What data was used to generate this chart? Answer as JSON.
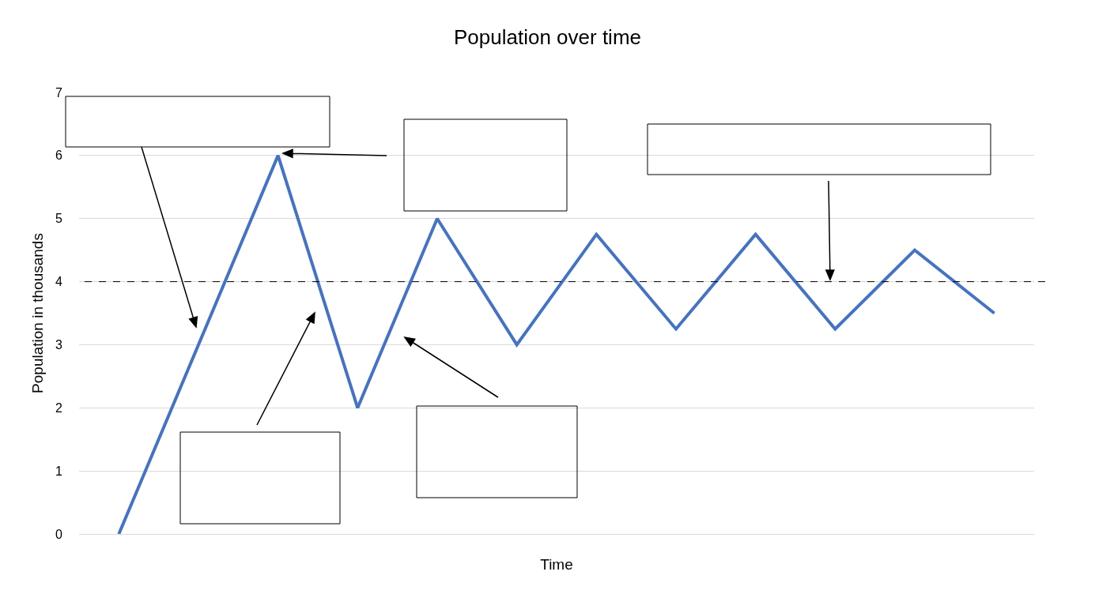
{
  "chart_data": {
    "type": "line",
    "title": "Population over time",
    "xlabel": "Time",
    "ylabel": "Population in thousands",
    "categories": [
      null,
      null,
      null,
      null,
      null,
      null,
      null,
      null,
      null,
      null,
      null,
      null
    ],
    "series": [
      {
        "color": "#4472c4",
        "values": [
          0,
          3,
          6,
          2,
          5,
          3,
          4.75,
          3.25,
          4.75,
          3.25,
          4.5,
          3.5
        ]
      }
    ],
    "ylim": [
      0,
      7
    ],
    "yticks": [
      0,
      1,
      2,
      3,
      4,
      5,
      6,
      7
    ],
    "grid": "y",
    "marker": "none",
    "line_style": "solid",
    "ref_lines": [
      {
        "axis": "y",
        "value": 4,
        "color": "#000000",
        "line_style": "dashed"
      }
    ]
  }
}
